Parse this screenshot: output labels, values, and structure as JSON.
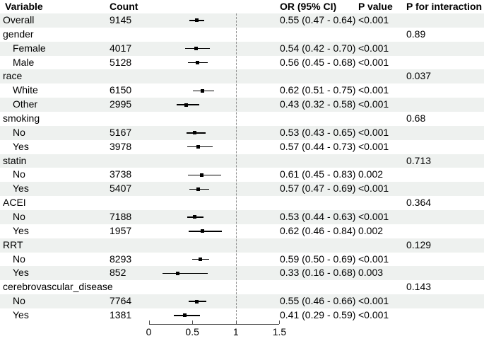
{
  "table": {
    "columns": [
      "Variable",
      "Count",
      "OR (95% CI)",
      "P value",
      "P for interaction"
    ]
  },
  "colors": {
    "stripe": "#eef1ef",
    "marker": "#000000",
    "ci_line": "#000000",
    "reference_line": "#8c8c8c",
    "axis": "#4d4d4d",
    "text": "#000000"
  },
  "chart_data": {
    "type": "forest",
    "title": "",
    "xlabel": "",
    "ylabel": "",
    "xlim": [
      0,
      1.5
    ],
    "x_ticks": [
      "0",
      "0.5",
      "1",
      "1.5"
    ],
    "x_tick_values": [
      0,
      0.5,
      1,
      1.5
    ],
    "reference_line": 1,
    "grid": false,
    "rows": [
      {
        "label": "Overall",
        "indent": 0,
        "count": "9145",
        "or": 0.55,
        "ci_low": 0.47,
        "ci_high": 0.64,
        "or_ci_text": "0.55 (0.47 - 0.64)",
        "p_value": "<0.001",
        "p_interaction": ""
      },
      {
        "label": "gender",
        "indent": 0,
        "count": "",
        "or": null,
        "or_ci_text": "",
        "p_value": "",
        "p_interaction": "0.89"
      },
      {
        "label": "Female",
        "indent": 1,
        "count": "4017",
        "or": 0.54,
        "ci_low": 0.42,
        "ci_high": 0.7,
        "or_ci_text": "0.54 (0.42 - 0.70)",
        "p_value": "<0.001",
        "p_interaction": ""
      },
      {
        "label": "Male",
        "indent": 1,
        "count": "5128",
        "or": 0.56,
        "ci_low": 0.45,
        "ci_high": 0.68,
        "or_ci_text": "0.56 (0.45 - 0.68)",
        "p_value": "<0.001",
        "p_interaction": ""
      },
      {
        "label": "race",
        "indent": 0,
        "count": "",
        "or": null,
        "or_ci_text": "",
        "p_value": "",
        "p_interaction": "0.037"
      },
      {
        "label": "White",
        "indent": 1,
        "count": "6150",
        "or": 0.62,
        "ci_low": 0.51,
        "ci_high": 0.75,
        "or_ci_text": "0.62 (0.51 - 0.75)",
        "p_value": "<0.001",
        "p_interaction": ""
      },
      {
        "label": "Other",
        "indent": 1,
        "count": "2995",
        "or": 0.43,
        "ci_low": 0.32,
        "ci_high": 0.58,
        "or_ci_text": "0.43 (0.32 - 0.58)",
        "p_value": "<0.001",
        "p_interaction": ""
      },
      {
        "label": "smoking",
        "indent": 0,
        "count": "",
        "or": null,
        "or_ci_text": "",
        "p_value": "",
        "p_interaction": "0.68"
      },
      {
        "label": "No",
        "indent": 1,
        "count": "5167",
        "or": 0.53,
        "ci_low": 0.43,
        "ci_high": 0.65,
        "or_ci_text": "0.53 (0.43 - 0.65)",
        "p_value": "<0.001",
        "p_interaction": ""
      },
      {
        "label": "Yes",
        "indent": 1,
        "count": "3978",
        "or": 0.57,
        "ci_low": 0.44,
        "ci_high": 0.73,
        "or_ci_text": "0.57 (0.44 - 0.73)",
        "p_value": "<0.001",
        "p_interaction": ""
      },
      {
        "label": "statin",
        "indent": 0,
        "count": "",
        "or": null,
        "or_ci_text": "",
        "p_value": "",
        "p_interaction": "0.713"
      },
      {
        "label": "No",
        "indent": 1,
        "count": "3738",
        "or": 0.61,
        "ci_low": 0.45,
        "ci_high": 0.83,
        "or_ci_text": "0.61 (0.45 - 0.83)",
        "p_value": "0.002",
        "p_interaction": ""
      },
      {
        "label": "Yes",
        "indent": 1,
        "count": "5407",
        "or": 0.57,
        "ci_low": 0.47,
        "ci_high": 0.69,
        "or_ci_text": "0.57 (0.47 - 0.69)",
        "p_value": "<0.001",
        "p_interaction": ""
      },
      {
        "label": "ACEI",
        "indent": 0,
        "count": "",
        "or": null,
        "or_ci_text": "",
        "p_value": "",
        "p_interaction": "0.364"
      },
      {
        "label": "No",
        "indent": 1,
        "count": "7188",
        "or": 0.53,
        "ci_low": 0.44,
        "ci_high": 0.63,
        "or_ci_text": "0.53 (0.44 - 0.63)",
        "p_value": "<0.001",
        "p_interaction": ""
      },
      {
        "label": "Yes",
        "indent": 1,
        "count": "1957",
        "or": 0.62,
        "ci_low": 0.46,
        "ci_high": 0.84,
        "or_ci_text": "0.62 (0.46 - 0.84)",
        "p_value": "0.002",
        "p_interaction": ""
      },
      {
        "label": "RRT",
        "indent": 0,
        "count": "",
        "or": null,
        "or_ci_text": "",
        "p_value": "",
        "p_interaction": "0.129"
      },
      {
        "label": "No",
        "indent": 1,
        "count": "8293",
        "or": 0.59,
        "ci_low": 0.5,
        "ci_high": 0.69,
        "or_ci_text": "0.59 (0.50 - 0.69)",
        "p_value": "<0.001",
        "p_interaction": ""
      },
      {
        "label": "Yes",
        "indent": 1,
        "count": "852",
        "or": 0.33,
        "ci_low": 0.16,
        "ci_high": 0.68,
        "or_ci_text": "0.33 (0.16 - 0.68)",
        "p_value": "0.003",
        "p_interaction": ""
      },
      {
        "label": "cerebrovascular_disease",
        "indent": 0,
        "count": "",
        "or": null,
        "or_ci_text": "",
        "p_value": "",
        "p_interaction": "0.143"
      },
      {
        "label": "No",
        "indent": 1,
        "count": "7764",
        "or": 0.55,
        "ci_low": 0.46,
        "ci_high": 0.66,
        "or_ci_text": "0.55 (0.46 - 0.66)",
        "p_value": "<0.001",
        "p_interaction": ""
      },
      {
        "label": "Yes",
        "indent": 1,
        "count": "1381",
        "or": 0.41,
        "ci_low": 0.29,
        "ci_high": 0.59,
        "or_ci_text": "0.41 (0.29 - 0.59)",
        "p_value": "<0.001",
        "p_interaction": ""
      }
    ]
  }
}
